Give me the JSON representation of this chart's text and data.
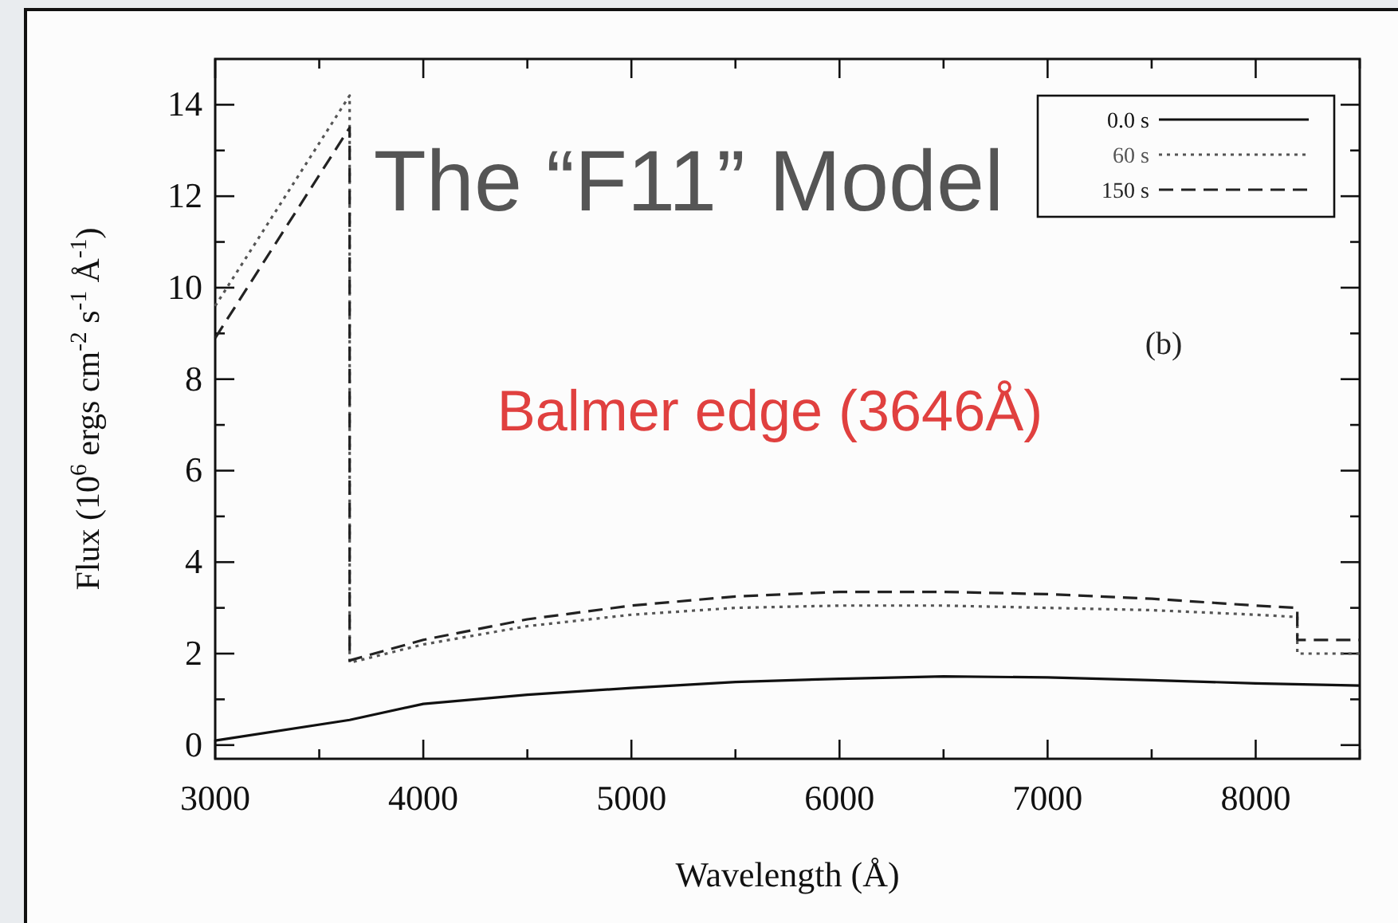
{
  "chart_data": {
    "type": "line",
    "title": "The “F11” Model",
    "xlabel": "Wavelength (Å)",
    "ylabel": "Flux (10$^{6}$ ergs cm$^{-2}$ s$^{-1}$ Å$^{-1}$)",
    "annotations": [
      "Balmer edge (3646Å)",
      "(b)"
    ],
    "xlim": [
      3000,
      8500
    ],
    "xticks": [
      3000,
      {
        "value": 3500,
        "label": null
      },
      4000,
      {
        "value": 4500,
        "label": null
      },
      5000,
      {
        "value": 5500,
        "label": null
      },
      6000,
      {
        "value": 6500,
        "label": null
      },
      7000,
      {
        "value": 7500,
        "label": null
      },
      8000,
      {
        "value": 8500,
        "label": null
      }
    ],
    "ylim": [
      -0.3,
      15
    ],
    "yticks": [
      0,
      {
        "value": 1,
        "label": null
      },
      2,
      {
        "value": 3,
        "label": null
      },
      4,
      {
        "value": 5,
        "label": null
      },
      6,
      {
        "value": 7,
        "label": null
      },
      8,
      {
        "value": 9,
        "label": null
      },
      10,
      {
        "value": 11,
        "label": null
      },
      12,
      {
        "value": 13,
        "label": null
      },
      14
    ],
    "grid": false,
    "legend": "top right",
    "marker": "none",
    "series": [
      {
        "name": "0.0 s",
        "color": "#111111",
        "line_style": "solid",
        "x": [
          3000,
          3646,
          4000,
          4500,
          5000,
          5500,
          6000,
          6500,
          7000,
          7500,
          8000,
          8500
        ],
        "values": [
          0.1,
          0.55,
          0.9,
          1.1,
          1.25,
          1.38,
          1.45,
          1.5,
          1.48,
          1.42,
          1.35,
          1.3
        ]
      },
      {
        "name": "60 s",
        "color": "#555555",
        "line_style": "dotted",
        "x": [
          3000,
          3646,
          3646,
          4000,
          4500,
          5000,
          5500,
          6000,
          6500,
          7000,
          7500,
          8000,
          8200,
          8200,
          8500
        ],
        "values": [
          9.6,
          14.2,
          1.8,
          2.2,
          2.6,
          2.85,
          3.0,
          3.05,
          3.05,
          3.0,
          2.95,
          2.85,
          2.8,
          2.0,
          2.0
        ]
      },
      {
        "name": "150 s",
        "color": "#222222",
        "line_style": "dashed",
        "x": [
          3000,
          3646,
          3646,
          4000,
          4500,
          5000,
          5500,
          6000,
          6500,
          7000,
          7500,
          8000,
          8200,
          8200,
          8500
        ],
        "values": [
          8.9,
          13.5,
          1.85,
          2.3,
          2.75,
          3.05,
          3.25,
          3.35,
          3.35,
          3.3,
          3.2,
          3.05,
          3.0,
          2.3,
          2.3
        ]
      }
    ]
  }
}
